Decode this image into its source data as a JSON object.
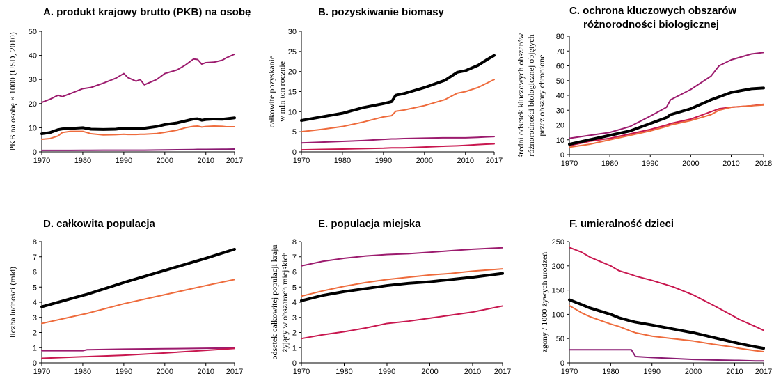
{
  "chart_data": [
    {
      "type": "line",
      "title": [
        "A. produkt krajowy brutto (PKB) na osobę"
      ],
      "ylabel": [
        "PKB na osobę × 1000 (USD, 2010)"
      ],
      "x": [
        1970,
        1972,
        1974,
        1975,
        1977,
        1980,
        1982,
        1985,
        1988,
        1990,
        1991,
        1993,
        1994,
        1995,
        1998,
        2000,
        2003,
        2005,
        2007,
        2008,
        2009,
        2010,
        2012,
        2014,
        2015,
        2017
      ],
      "xlim": [
        1970,
        2017
      ],
      "xticks": [
        1970,
        1980,
        1990,
        2000,
        2010,
        2017
      ],
      "ylim": [
        0,
        50
      ],
      "yticks": [
        0,
        10,
        20,
        30,
        40,
        50
      ],
      "series": [
        {
          "color": "#9c1b6e",
          "values": [
            20.5,
            21.8,
            23.5,
            22.9,
            24.2,
            26.2,
            26.7,
            28.5,
            30.5,
            32.5,
            30.8,
            29.3,
            30.0,
            27.8,
            30.0,
            32.5,
            34.0,
            36.0,
            38.5,
            38.3,
            36.4,
            37.0,
            37.2,
            38.0,
            39.0,
            40.5
          ]
        },
        {
          "color": "#ee6b3c",
          "values": [
            5.2,
            5.5,
            6.6,
            8.0,
            8.5,
            8.5,
            7.5,
            7.0,
            7.1,
            7.3,
            7.2,
            7.2,
            7.3,
            7.3,
            7.6,
            8.1,
            9.0,
            10.0,
            10.6,
            10.7,
            10.3,
            10.5,
            10.7,
            10.6,
            10.4,
            10.4
          ]
        },
        {
          "color": "#000000",
          "values": [
            7.5,
            8.0,
            9.2,
            9.5,
            9.7,
            10.0,
            9.4,
            9.3,
            9.4,
            9.8,
            9.7,
            9.6,
            9.7,
            9.8,
            10.5,
            11.3,
            12.0,
            12.8,
            13.6,
            13.7,
            13.1,
            13.4,
            13.6,
            13.5,
            13.7,
            14.1
          ]
        },
        {
          "color": "#8a1a72",
          "values": [
            0.6,
            0.6,
            0.6,
            0.6,
            0.6,
            0.65,
            0.65,
            0.7,
            0.7,
            0.7,
            0.7,
            0.7,
            0.7,
            0.7,
            0.75,
            0.8,
            0.85,
            0.9,
            0.95,
            1.0,
            1.0,
            1.0,
            1.05,
            1.1,
            1.1,
            1.15
          ]
        }
      ]
    },
    {
      "type": "line",
      "title": [
        "B. pozyskiwanie biomasy"
      ],
      "ylabel": [
        "całkowite pozyskanie",
        "w mln ton rocznie"
      ],
      "x": [
        1970,
        1975,
        1980,
        1985,
        1990,
        1992,
        1993,
        1995,
        2000,
        2005,
        2008,
        2010,
        2013,
        2015,
        2017
      ],
      "xlim": [
        1970,
        2017
      ],
      "xticks": [
        1970,
        1980,
        1990,
        2000,
        2010,
        2017
      ],
      "ylim": [
        0,
        30
      ],
      "yticks": [
        0,
        5,
        10,
        15,
        20,
        25,
        30
      ],
      "series": [
        {
          "color": "#000000",
          "values": [
            7.8,
            8.7,
            9.6,
            11.0,
            12.0,
            12.5,
            14.1,
            14.5,
            16.0,
            17.8,
            19.8,
            20.2,
            21.5,
            22.8,
            24.0
          ]
        },
        {
          "color": "#ee6b3c",
          "values": [
            5.0,
            5.6,
            6.3,
            7.4,
            8.7,
            9.0,
            10.1,
            10.4,
            11.5,
            13.0,
            14.6,
            15.0,
            16.0,
            17.0,
            18.0
          ]
        },
        {
          "color": "#9c1b6e",
          "values": [
            2.2,
            2.4,
            2.6,
            2.8,
            3.1,
            3.2,
            3.2,
            3.3,
            3.4,
            3.5,
            3.5,
            3.5,
            3.6,
            3.7,
            3.8
          ]
        },
        {
          "color": "#c8174f",
          "values": [
            0.5,
            0.6,
            0.7,
            0.8,
            0.9,
            1.0,
            1.0,
            1.0,
            1.2,
            1.4,
            1.5,
            1.6,
            1.8,
            1.9,
            2.0
          ]
        }
      ]
    },
    {
      "type": "line",
      "title": [
        "C. ochrona kluczowych obszarów",
        "różnorodności biologicznej"
      ],
      "ylabel": [
        "średni odsetek kluczowych obszarów",
        "różnorodności biologicznej objętych",
        "przez obszary chronione"
      ],
      "x": [
        1970,
        1975,
        1980,
        1985,
        1990,
        1994,
        1995,
        2000,
        2005,
        2007,
        2010,
        2015,
        2018
      ],
      "xlim": [
        1970,
        2018
      ],
      "xticks": [
        1970,
        1980,
        1990,
        2000,
        2010,
        2018
      ],
      "ylim": [
        0,
        80
      ],
      "yticks": [
        0,
        10,
        20,
        30,
        40,
        50,
        60,
        70,
        80
      ],
      "series": [
        {
          "color": "#9c1b6e",
          "values": [
            11,
            13,
            15,
            19,
            26,
            32,
            37,
            44,
            53,
            60,
            64,
            68,
            69
          ]
        },
        {
          "color": "#c8174f",
          "values": [
            6,
            9,
            11,
            14,
            17,
            20,
            21,
            24,
            29,
            31,
            32,
            33,
            34
          ]
        },
        {
          "color": "#ee6b3c",
          "values": [
            5,
            7,
            10,
            13,
            16,
            19,
            20,
            23,
            27,
            30,
            32,
            33,
            33.5
          ]
        },
        {
          "color": "#000000",
          "values": [
            7,
            10,
            13,
            16,
            21,
            25,
            27,
            31,
            37,
            39,
            42,
            44.5,
            45
          ]
        }
      ]
    },
    {
      "type": "line",
      "title": [
        "D. całkowita populacja"
      ],
      "ylabel": [
        "liczba ludności (mld)"
      ],
      "x": [
        1970,
        1980,
        1981,
        1990,
        2000,
        2010,
        2017
      ],
      "xlim": [
        1970,
        2017
      ],
      "xticks": [
        1970,
        1980,
        1990,
        2000,
        2010,
        2017
      ],
      "ylim": [
        0,
        8
      ],
      "yticks": [
        0,
        1,
        2,
        3,
        4,
        5,
        6,
        7,
        8
      ],
      "series": [
        {
          "color": "#000000",
          "values": [
            3.7,
            4.45,
            4.52,
            5.3,
            6.1,
            6.9,
            7.5
          ]
        },
        {
          "color": "#ee6b3c",
          "values": [
            2.6,
            3.2,
            3.26,
            3.9,
            4.5,
            5.1,
            5.5
          ]
        },
        {
          "color": "#9c1b6e",
          "values": [
            0.8,
            0.8,
            0.86,
            0.9,
            0.93,
            0.96,
            0.98
          ]
        },
        {
          "color": "#c8174f",
          "values": [
            0.3,
            0.4,
            0.41,
            0.5,
            0.65,
            0.82,
            0.95
          ]
        }
      ]
    },
    {
      "type": "line",
      "title": [
        "E. populacja miejska"
      ],
      "ylabel": [
        "odsetek całkowitej populacji kraju",
        "żyjący w obszarach miejskich"
      ],
      "x": [
        1970,
        1975,
        1980,
        1985,
        1990,
        1995,
        2000,
        2005,
        2010,
        2017
      ],
      "xlim": [
        1970,
        2017
      ],
      "xticks": [
        1970,
        1980,
        1990,
        2000,
        2010,
        2017
      ],
      "ylim": [
        0,
        8
      ],
      "yticks": [
        0,
        1,
        2,
        3,
        4,
        5,
        6,
        7,
        8
      ],
      "series": [
        {
          "color": "#9c1b6e",
          "values": [
            6.4,
            6.7,
            6.9,
            7.05,
            7.15,
            7.2,
            7.3,
            7.4,
            7.5,
            7.6
          ]
        },
        {
          "color": "#ee6b3c",
          "values": [
            4.4,
            4.75,
            5.05,
            5.3,
            5.5,
            5.65,
            5.8,
            5.9,
            6.05,
            6.2
          ]
        },
        {
          "color": "#000000",
          "values": [
            4.1,
            4.45,
            4.7,
            4.9,
            5.1,
            5.25,
            5.35,
            5.5,
            5.65,
            5.9
          ]
        },
        {
          "color": "#c8174f",
          "values": [
            1.6,
            1.85,
            2.05,
            2.3,
            2.6,
            2.75,
            2.95,
            3.15,
            3.35,
            3.75
          ]
        }
      ]
    },
    {
      "type": "line",
      "title": [
        "F. umieralność dzieci"
      ],
      "ylabel": [
        "zgony / 1000 żywych urodzeń"
      ],
      "x": [
        1970,
        1973,
        1975,
        1980,
        1982,
        1985,
        1986,
        1990,
        1995,
        2000,
        2005,
        2010,
        2011,
        2015,
        2017
      ],
      "xlim": [
        1970,
        2017
      ],
      "xticks": [
        1970,
        1980,
        1990,
        2000,
        2010,
        2017
      ],
      "ylim": [
        0,
        250
      ],
      "yticks": [
        0,
        50,
        100,
        150,
        200,
        250
      ],
      "series": [
        {
          "color": "#c8174f",
          "values": [
            238,
            228,
            218,
            200,
            190,
            182,
            179,
            170,
            157,
            140,
            118,
            95,
            90,
            75,
            67
          ]
        },
        {
          "color": "#000000",
          "values": [
            130,
            120,
            113,
            100,
            93,
            86,
            84,
            78,
            70,
            62,
            52,
            42,
            40,
            33,
            30
          ]
        },
        {
          "color": "#ee6b3c",
          "values": [
            118,
            103,
            95,
            80,
            75,
            65,
            62,
            55,
            50,
            45,
            38,
            32,
            30,
            25,
            23
          ]
        },
        {
          "color": "#8a1a72",
          "values": [
            27,
            27,
            27,
            27,
            27,
            27,
            13,
            11,
            9,
            7,
            6,
            5,
            5,
            4,
            4
          ]
        }
      ]
    }
  ]
}
